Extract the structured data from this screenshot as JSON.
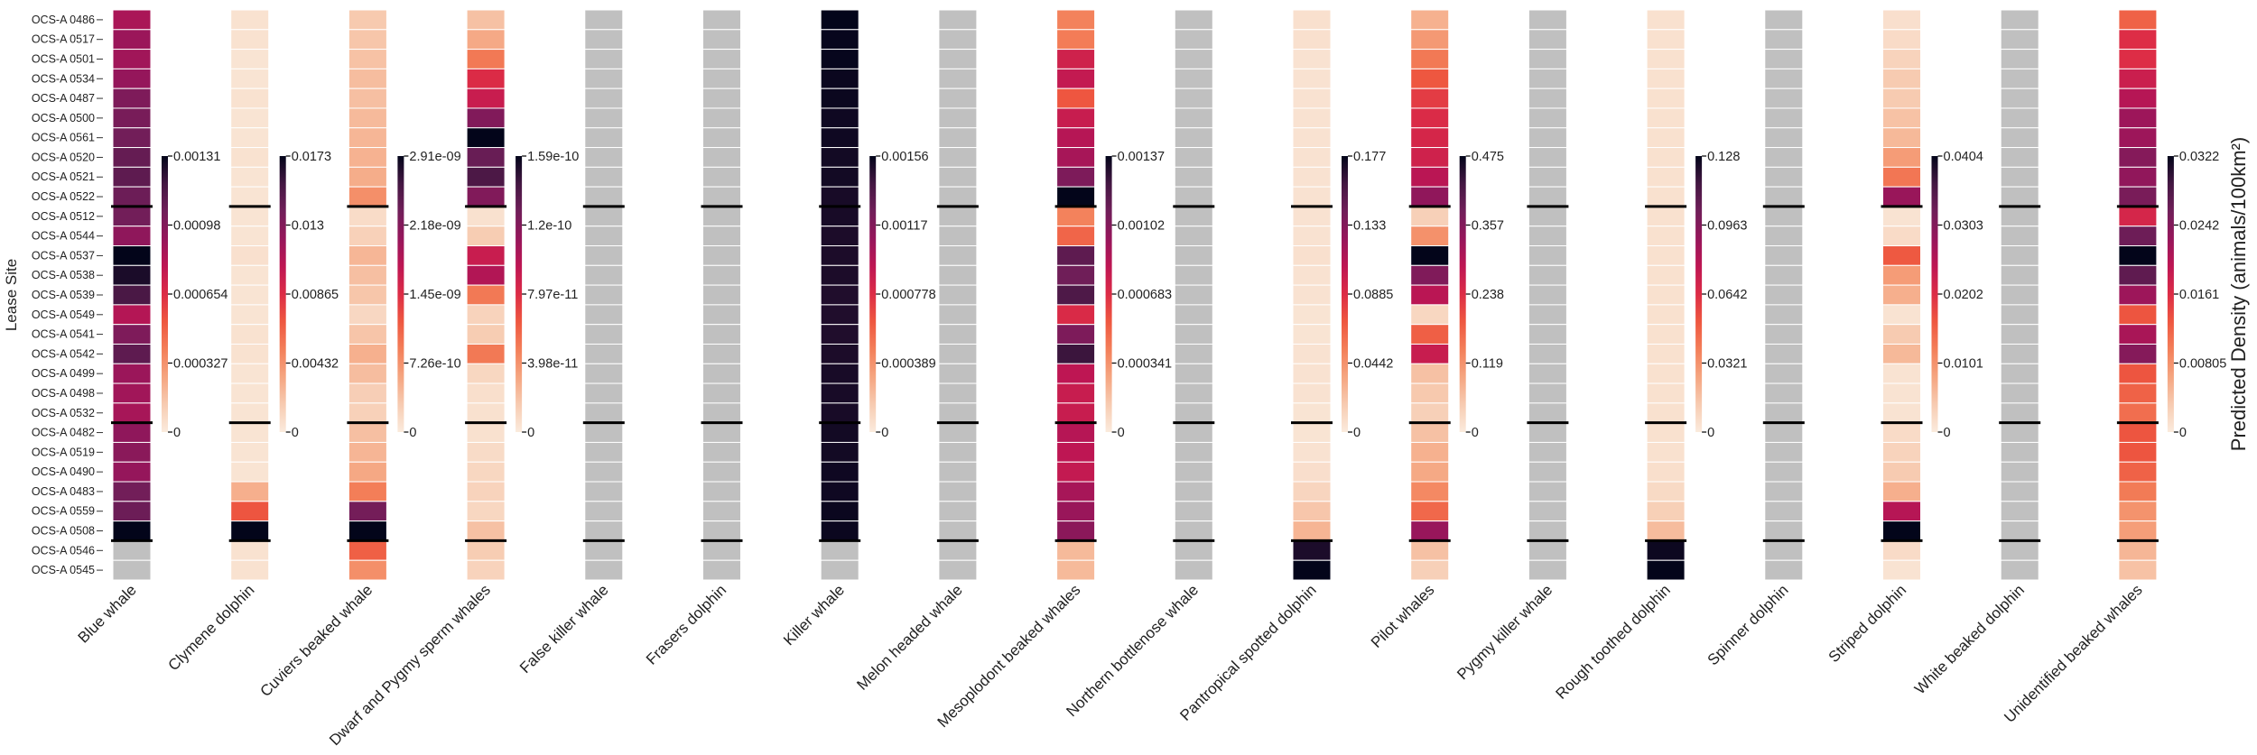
{
  "chart_data": {
    "type": "heatmap",
    "ylabel": "Lease Site",
    "colorbar_label": "Predicted Density (animals/100km²)",
    "colormap": "rocket_r",
    "missing_color": "#c0c0c0",
    "rows": [
      "OCS-A 0486",
      "OCS-A 0517",
      "OCS-A 0501",
      "OCS-A 0534",
      "OCS-A 0487",
      "OCS-A 0500",
      "OCS-A 0561",
      "OCS-A 0520",
      "OCS-A 0521",
      "OCS-A 0522",
      "OCS-A 0512",
      "OCS-A 0544",
      "OCS-A 0537",
      "OCS-A 0538",
      "OCS-A 0539",
      "OCS-A 0549",
      "OCS-A 0541",
      "OCS-A 0542",
      "OCS-A 0499",
      "OCS-A 0498",
      "OCS-A 0532",
      "OCS-A 0482",
      "OCS-A 0519",
      "OCS-A 0490",
      "OCS-A 0483",
      "OCS-A 0559",
      "OCS-A 0508",
      "OCS-A 0546",
      "OCS-A 0545"
    ],
    "group_boundaries": [
      10,
      21,
      27
    ],
    "species": [
      {
        "name": "Blue whale",
        "vmax": 0.00131,
        "ticks": [
          "0",
          "0.000327",
          "0.000654",
          "0.00098",
          "0.00131"
        ],
        "values": [
          0.00085,
          0.0009,
          0.00088,
          0.00092,
          0.001,
          0.00102,
          0.00104,
          0.00108,
          0.0011,
          0.00106,
          0.00104,
          0.00094,
          0.00131,
          0.00126,
          0.00116,
          0.00082,
          0.001,
          0.0011,
          0.0009,
          0.00088,
          0.00086,
          0.00094,
          0.00096,
          0.00092,
          0.00104,
          0.00106,
          0.00131,
          null,
          null
        ]
      },
      {
        "name": "Clymene dolphin",
        "vmax": 0.0173,
        "ticks": [
          "0",
          "0.00432",
          "0.00865",
          "0.013",
          "0.0173"
        ],
        "values": [
          0.0005,
          0.0005,
          0.0004,
          0.0004,
          0.0005,
          0.0004,
          0.0004,
          0.0005,
          0.0004,
          0.0004,
          0.0004,
          0.0004,
          0.0006,
          0.0004,
          0.0004,
          0.0004,
          0.0005,
          0.0005,
          0.0004,
          0.0004,
          0.0004,
          0.0004,
          0.0004,
          0.0004,
          0.003,
          0.007,
          0.0173,
          0.0005,
          0.0005
        ]
      },
      {
        "name": "Cuviers beaked whale",
        "vmax": 2.91e-09,
        "ticks": [
          "0",
          "7.26e-10",
          "1.45e-09",
          "2.18e-09",
          "2.91e-09"
        ],
        "values": [
          3e-10,
          3.3e-10,
          3.6e-10,
          4e-10,
          3.8e-10,
          4.2e-10,
          4.5e-10,
          4.8e-10,
          5.2e-10,
          7.5e-10,
          1.4e-10,
          2.4e-10,
          4.5e-10,
          3.8e-10,
          3.3e-10,
          1.8e-10,
          3.4e-10,
          5e-10,
          4e-10,
          2.6e-10,
          2.4e-10,
          3.8e-10,
          4.6e-10,
          5.6e-10,
          8.8e-10,
          2.3e-09,
          2.91e-09,
          1.1e-09,
          7.5e-10
        ]
      },
      {
        "name": "Dwarf and Pygmy sperm whales",
        "vmax": 1.59e-10,
        "ticks": [
          "0",
          "3.98e-11",
          "7.97e-11",
          "1.2e-10",
          "1.59e-10"
        ],
        "values": [
          2e-11,
          3e-11,
          5e-11,
          8e-11,
          9e-11,
          1.2e-10,
          1.59e-10,
          1.3e-10,
          1.4e-10,
          1.2e-10,
          5e-12,
          1.5e-11,
          9e-11,
          1e-10,
          5e-11,
          1.2e-11,
          1.5e-11,
          5e-11,
          1e-11,
          6e-12,
          5e-12,
          5e-12,
          8e-12,
          1e-11,
          1.2e-11,
          1e-11,
          2e-11,
          1.5e-11,
          1.2e-11
        ]
      },
      {
        "name": "False killer whale",
        "vmax": null,
        "ticks": [],
        "values": []
      },
      {
        "name": "Frasers dolphin",
        "vmax": null,
        "ticks": [],
        "values": []
      },
      {
        "name": "Killer whale",
        "vmax": 0.00156,
        "ticks": [
          "0",
          "0.000389",
          "0.000778",
          "0.00117",
          "0.00156"
        ],
        "values": [
          0.00156,
          0.00155,
          0.00155,
          0.00154,
          0.00154,
          0.00153,
          0.00153,
          0.00152,
          0.00152,
          0.00151,
          0.00151,
          0.0015,
          0.0015,
          0.0015,
          0.00149,
          0.00149,
          0.00149,
          0.0015,
          0.00151,
          0.00151,
          0.00151,
          0.00152,
          0.00152,
          0.00153,
          0.00153,
          0.00154,
          0.00154,
          null,
          null
        ]
      },
      {
        "name": "Melon headed whale",
        "vmax": null,
        "ticks": [],
        "values": []
      },
      {
        "name": "Mesoplodont beaked whales",
        "vmax": 0.00137,
        "ticks": [
          "0",
          "0.000341",
          "0.000683",
          "0.00102",
          "0.00137"
        ],
        "values": [
          0.0004,
          0.00042,
          0.00075,
          0.0008,
          0.00055,
          0.00078,
          0.00085,
          0.0009,
          0.00105,
          0.00137,
          0.0004,
          0.0005,
          0.00115,
          0.0011,
          0.0012,
          0.0007,
          0.00105,
          0.00125,
          0.00082,
          0.00078,
          0.00078,
          0.00085,
          0.00082,
          0.0008,
          0.0009,
          0.00095,
          0.001,
          0.0002,
          0.0002
        ]
      },
      {
        "name": "Northern bottlenose whale",
        "vmax": null,
        "ticks": [],
        "values": []
      },
      {
        "name": "Pantropical spotted dolphin",
        "vmax": 0.177,
        "ticks": [
          "0",
          "0.0442",
          "0.0885",
          "0.133",
          "0.177"
        ],
        "values": [
          0.006,
          0.006,
          0.005,
          0.005,
          0.005,
          0.005,
          0.005,
          0.005,
          0.005,
          0.005,
          0.005,
          0.005,
          0.006,
          0.005,
          0.005,
          0.004,
          0.004,
          0.005,
          0.005,
          0.005,
          0.004,
          0.004,
          0.005,
          0.007,
          0.012,
          0.02,
          0.028,
          0.17,
          0.177
        ]
      },
      {
        "name": "Pilot whales",
        "vmax": 0.475,
        "ticks": [
          "0",
          "0.119",
          "0.238",
          "0.357",
          "0.475"
        ],
        "values": [
          0.08,
          0.11,
          0.15,
          0.19,
          0.22,
          0.24,
          0.25,
          0.26,
          0.29,
          0.34,
          0.04,
          0.12,
          0.475,
          0.36,
          0.29,
          0.03,
          0.18,
          0.27,
          0.06,
          0.05,
          0.04,
          0.06,
          0.08,
          0.09,
          0.13,
          0.17,
          0.33,
          0.06,
          0.04
        ]
      },
      {
        "name": "Pygmy killer whale",
        "vmax": null,
        "ticks": [],
        "values": []
      },
      {
        "name": "Rough toothed dolphin",
        "vmax": 0.128,
        "ticks": [
          "0",
          "0.0321",
          "0.0642",
          "0.0963",
          "0.128"
        ],
        "values": [
          0.004,
          0.004,
          0.004,
          0.004,
          0.004,
          0.004,
          0.004,
          0.004,
          0.004,
          0.004,
          0.004,
          0.004,
          0.004,
          0.004,
          0.004,
          0.004,
          0.004,
          0.004,
          0.004,
          0.004,
          0.004,
          0.004,
          0.004,
          0.005,
          0.007,
          0.011,
          0.018,
          0.126,
          0.128
        ]
      },
      {
        "name": "Spinner dolphin",
        "vmax": null,
        "ticks": [],
        "values": []
      },
      {
        "name": "Striped dolphin",
        "vmax": 0.0404,
        "ticks": [
          "0",
          "0.0101",
          "0.0202",
          "0.0303",
          "0.0404"
        ],
        "values": [
          0.0015,
          0.002,
          0.003,
          0.004,
          0.004,
          0.005,
          0.006,
          0.009,
          0.013,
          0.028,
          0.001,
          0.002,
          0.016,
          0.009,
          0.007,
          0.001,
          0.004,
          0.006,
          0.001,
          0.001,
          0.001,
          0.002,
          0.003,
          0.004,
          0.007,
          0.025,
          0.0404,
          0.002,
          0.001
        ]
      },
      {
        "name": "White beaked dolphin",
        "vmax": null,
        "ticks": [],
        "values": []
      },
      {
        "name": "Unidentified beaked whales",
        "vmax": 0.0322,
        "ticks": [
          "0",
          "0.00805",
          "0.0161",
          "0.0242",
          "0.0322"
        ],
        "values": [
          0.012,
          0.016,
          0.016,
          0.018,
          0.02,
          0.022,
          0.022,
          0.024,
          0.023,
          0.025,
          0.017,
          0.026,
          0.0322,
          0.027,
          0.022,
          0.013,
          0.021,
          0.024,
          0.013,
          0.012,
          0.011,
          0.013,
          0.013,
          0.012,
          0.01,
          0.008,
          0.007,
          0.005,
          0.004
        ]
      }
    ]
  }
}
